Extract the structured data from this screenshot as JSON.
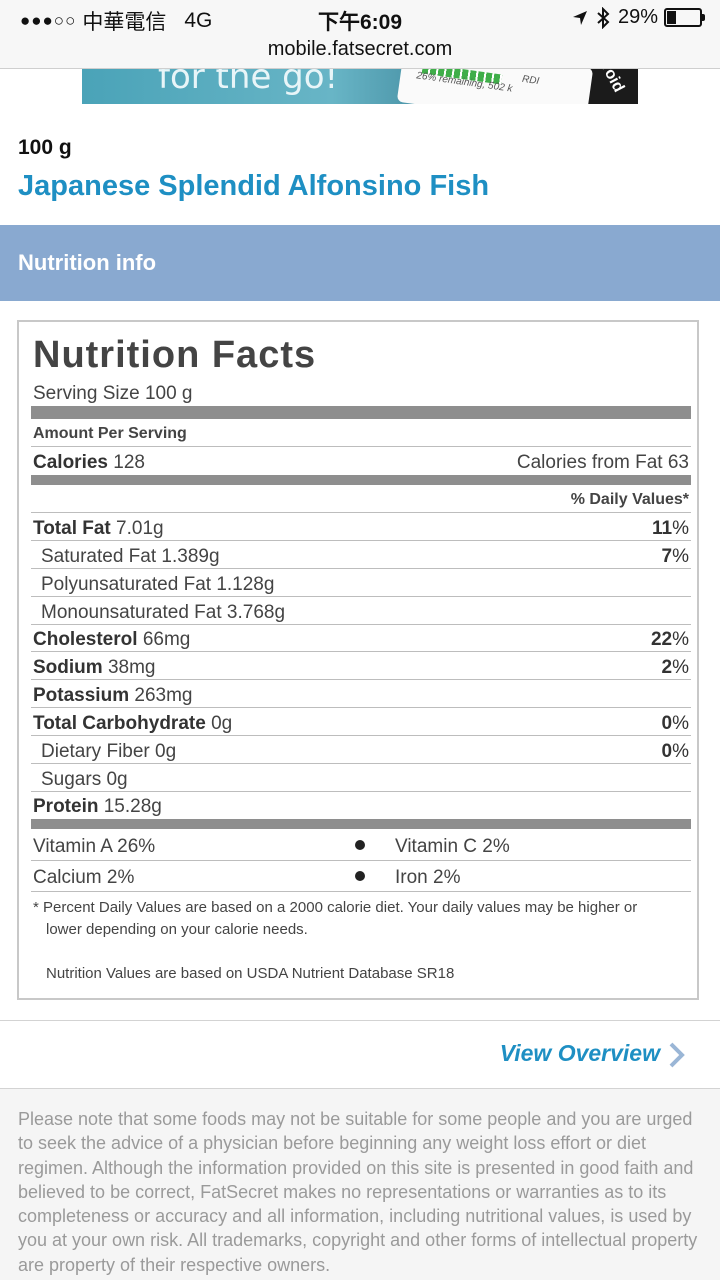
{
  "status_bar": {
    "signal_dots": "●●●○○",
    "carrier": "中華電信",
    "network": "4G",
    "time": "下午6:09",
    "battery": "29%",
    "battery_level": 0.29
  },
  "browser": {
    "url": "mobile.fatsecret.com"
  },
  "banner": {
    "text": "for the go!",
    "remaining": "26% remaining, 502 k",
    "rdi": "RDI",
    "platform": "roid"
  },
  "food": {
    "serving": "100 g",
    "name": "Japanese Splendid Alfonsino Fish"
  },
  "section": {
    "title": "Nutrition info"
  },
  "nutrition_facts": {
    "title": "Nutrition Facts",
    "serving_size": "Serving Size 100 g",
    "amount_per_serving": "Amount Per Serving",
    "calories_label": "Calories",
    "calories_value": "128",
    "calories_from_fat": "Calories from Fat 63",
    "daily_values_header": "% Daily Values*",
    "rows": [
      {
        "label": "Total Fat",
        "value": "7.01g",
        "pct_num": "11",
        "pct_sign": "%"
      },
      {
        "label": "Saturated Fat",
        "value": "1.389g",
        "pct_num": "7",
        "pct_sign": "%"
      },
      {
        "label": "Polyunsaturated Fat",
        "value": "1.128g",
        "pct_num": "",
        "pct_sign": ""
      },
      {
        "label": "Monounsaturated Fat",
        "value": "3.768g",
        "pct_num": "",
        "pct_sign": ""
      },
      {
        "label": "Cholesterol",
        "value": "66mg",
        "pct_num": "22",
        "pct_sign": "%"
      },
      {
        "label": "Sodium",
        "value": "38mg",
        "pct_num": "2",
        "pct_sign": "%"
      },
      {
        "label": "Potassium",
        "value": "263mg",
        "pct_num": "",
        "pct_sign": ""
      },
      {
        "label": "Total Carbohydrate",
        "value": "0g",
        "pct_num": "0",
        "pct_sign": "%"
      },
      {
        "label": "Dietary Fiber",
        "value": "0g",
        "pct_num": "0",
        "pct_sign": "%"
      },
      {
        "label": "Sugars",
        "value": "0g",
        "pct_num": "",
        "pct_sign": ""
      },
      {
        "label": "Protein",
        "value": "15.28g",
        "pct_num": "",
        "pct_sign": ""
      }
    ],
    "vitamins": [
      {
        "label": "Vitamin A 26%"
      },
      {
        "label": "Vitamin C 2%"
      },
      {
        "label": "Calcium 2%"
      },
      {
        "label": "Iron 2%"
      }
    ],
    "footnote_line1": "* Percent Daily Values are based on a 2000 calorie diet. Your daily values may be higher or",
    "footnote_line2": "lower depending on your calorie needs.",
    "source": "Nutrition Values are based on USDA Nutrient Database SR18"
  },
  "link": {
    "view_overview": "View Overview"
  },
  "disclaimer": "Please note that some foods may not be suitable for some people and you are urged to seek the advice of a physician before beginning any weight loss effort or diet regimen. Although the information provided on this site is presented in good faith and believed to be correct, FatSecret makes no representations or warranties as to its completeness or accuracy and all information, including nutritional values, is used by you at your own risk. All trademarks, copyright and other forms of intellectual property are property of their respective owners.",
  "colors": {
    "link_blue": "#1e8fc3",
    "section_header_bg": "#89a9d0",
    "bar_gray": "#8e8e8e"
  }
}
